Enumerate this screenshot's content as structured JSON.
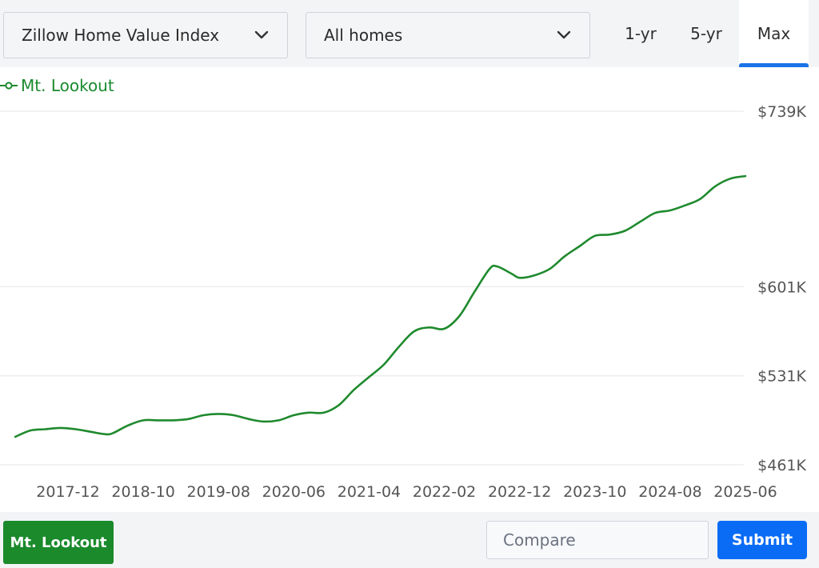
{
  "controls": {
    "metric_dropdown": {
      "label": "Zillow Home Value Index"
    },
    "home_type_dropdown": {
      "label": "All homes"
    },
    "range_tabs": [
      {
        "label": "1-yr",
        "active": false
      },
      {
        "label": "5-yr",
        "active": false
      },
      {
        "label": "Max",
        "active": true
      }
    ]
  },
  "legend": {
    "label": "Mt. Lookout"
  },
  "chart_data": {
    "type": "line",
    "title": "",
    "xlabel": "",
    "ylabel": "",
    "ytick_labels": [
      "$461K",
      "$531K",
      "$601K",
      "$739K"
    ],
    "ytick_values": [
      461,
      531,
      601,
      739
    ],
    "xtick_labels": [
      "2017-12",
      "2018-10",
      "2019-08",
      "2020-06",
      "2021-04",
      "2022-02",
      "2022-12",
      "2023-10",
      "2024-08",
      "2025-06"
    ],
    "series": [
      {
        "name": "Mt. Lookout",
        "color": "#1f8a2e",
        "points": [
          [
            "2017-05",
            483
          ],
          [
            "2017-07",
            488
          ],
          [
            "2017-09",
            489
          ],
          [
            "2017-11",
            490
          ],
          [
            "2018-01",
            489
          ],
          [
            "2018-03",
            487
          ],
          [
            "2018-05",
            485
          ],
          [
            "2018-06",
            486
          ],
          [
            "2018-08",
            492
          ],
          [
            "2018-10",
            496
          ],
          [
            "2018-12",
            496
          ],
          [
            "2019-02",
            496
          ],
          [
            "2019-04",
            497
          ],
          [
            "2019-06",
            500
          ],
          [
            "2019-08",
            501
          ],
          [
            "2019-10",
            500
          ],
          [
            "2019-12",
            497
          ],
          [
            "2020-02",
            495
          ],
          [
            "2020-04",
            496
          ],
          [
            "2020-06",
            500
          ],
          [
            "2020-08",
            502
          ],
          [
            "2020-10",
            502
          ],
          [
            "2020-12",
            508
          ],
          [
            "2021-02",
            520
          ],
          [
            "2021-04",
            530
          ],
          [
            "2021-06",
            540
          ],
          [
            "2021-08",
            554
          ],
          [
            "2021-10",
            566
          ],
          [
            "2021-12",
            569
          ],
          [
            "2022-02",
            568
          ],
          [
            "2022-04",
            578
          ],
          [
            "2022-06",
            597
          ],
          [
            "2022-08",
            615
          ],
          [
            "2022-09",
            617
          ],
          [
            "2022-11",
            611
          ],
          [
            "2022-12",
            608
          ],
          [
            "2023-02",
            610
          ],
          [
            "2023-04",
            615
          ],
          [
            "2023-06",
            625
          ],
          [
            "2023-08",
            633
          ],
          [
            "2023-10",
            641
          ],
          [
            "2023-12",
            642
          ],
          [
            "2024-02",
            645
          ],
          [
            "2024-04",
            652
          ],
          [
            "2024-06",
            659
          ],
          [
            "2024-08",
            661
          ],
          [
            "2024-10",
            665
          ],
          [
            "2024-12",
            670
          ],
          [
            "2025-02",
            680
          ],
          [
            "2025-04",
            686
          ],
          [
            "2025-06",
            688
          ]
        ]
      }
    ],
    "grid": true,
    "legend_position": "top-left",
    "y_axis_side": "right"
  },
  "compare": {
    "placeholder": "Compare",
    "value": ""
  },
  "chips": [
    {
      "label": "Mt. Lookout",
      "color": "#1a8a2b"
    }
  ],
  "submit": {
    "label": "Submit",
    "color": "#0a6cf5"
  }
}
